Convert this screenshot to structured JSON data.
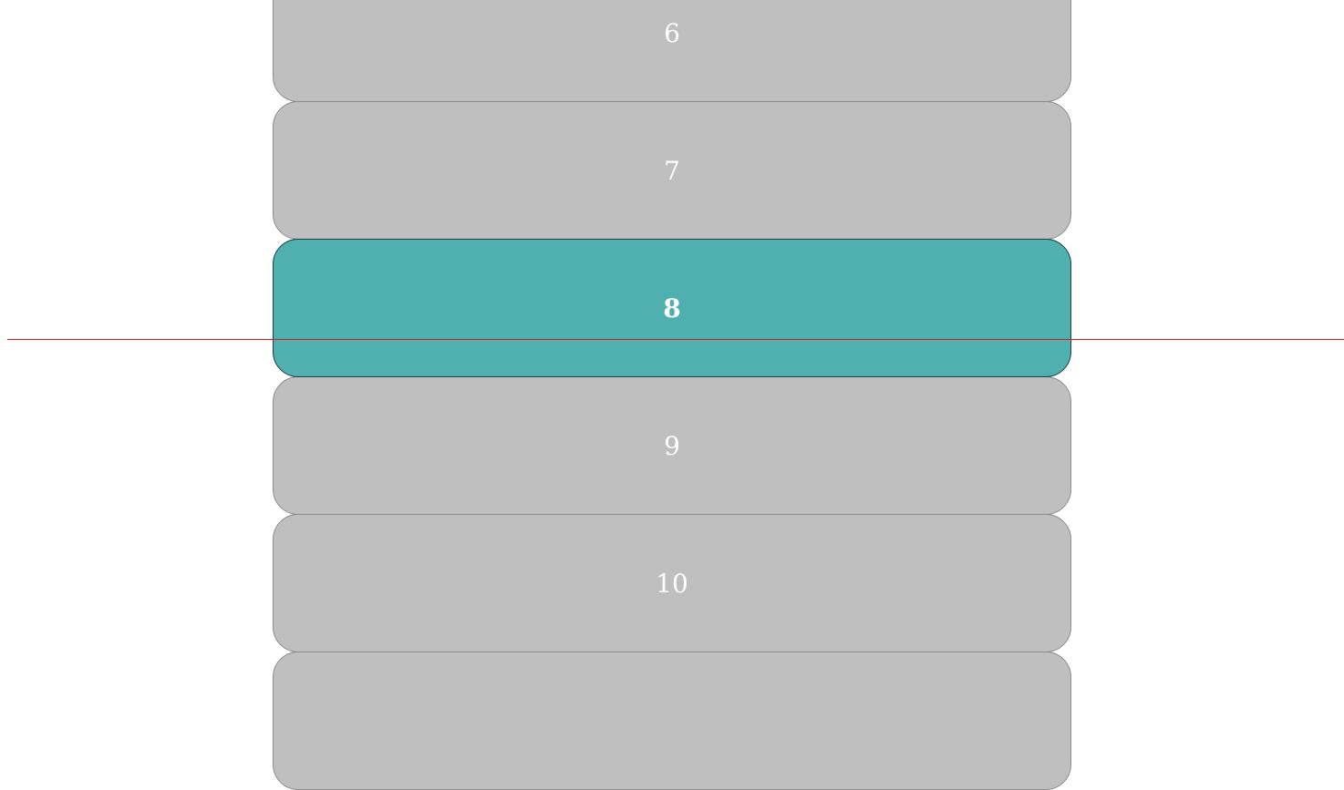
{
  "picker": {
    "items": [
      {
        "label": "6"
      },
      {
        "label": "7"
      },
      {
        "label": "8"
      },
      {
        "label": "9"
      },
      {
        "label": "10"
      },
      {
        "label": ""
      }
    ],
    "selected_label": "8"
  },
  "colors": {
    "item_bg": "#bfbfbf",
    "selected_bg": "#50b0b0",
    "indicator": "#cc1f1f",
    "text": "#ffffff"
  }
}
